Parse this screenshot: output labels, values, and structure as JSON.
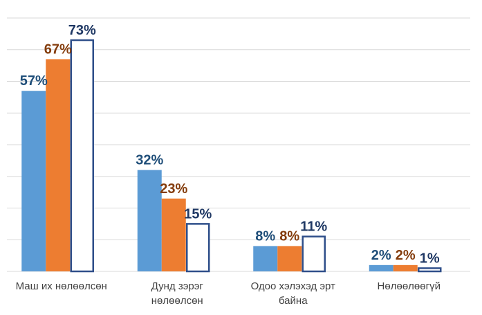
{
  "chart_data": {
    "type": "bar",
    "categories": [
      [
        "Маш их нөлөөлсөн"
      ],
      [
        "Дунд зэрэг",
        "нөлөөлсөн"
      ],
      [
        "Одоо хэлэхэд эрт",
        "байна"
      ],
      [
        "Нөлөөлөөгүй"
      ]
    ],
    "series": [
      {
        "values": [
          57,
          32,
          8,
          2
        ],
        "labels": [
          "57%",
          "32%",
          "8%",
          "2%"
        ],
        "fill": "#5b9bd5",
        "label_color": "#1f4e79",
        "style": "solid"
      },
      {
        "values": [
          67,
          23,
          8,
          2
        ],
        "labels": [
          "67%",
          "23%",
          "8%",
          "2%"
        ],
        "fill": "#ed7d31",
        "label_color": "#843c0c",
        "style": "solid"
      },
      {
        "values": [
          73,
          15,
          11,
          1
        ],
        "labels": [
          "73%",
          "15%",
          "11%",
          "1%"
        ],
        "fill": "#ffffff",
        "stroke": "#2f4f8a",
        "label_color": "#1f3864",
        "style": "outline"
      }
    ],
    "ylim": [
      0,
      80
    ],
    "grid": true,
    "legend": "none",
    "title": "",
    "xlabel": "",
    "ylabel": ""
  }
}
